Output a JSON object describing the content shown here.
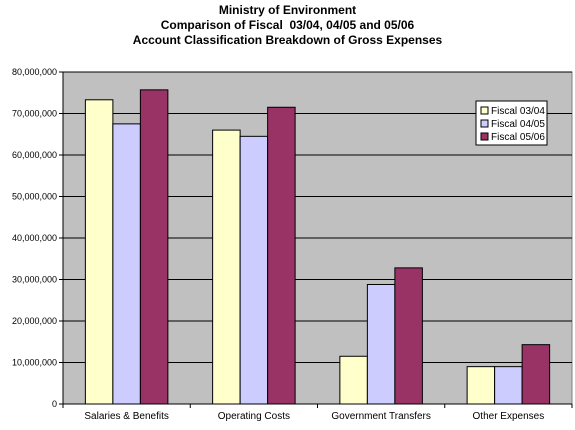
{
  "title_lines": [
    "Ministry of Environment",
    "Comparison of Fiscal  03/04, 04/05 and 05/06",
    "Account Classification Breakdown of Gross Expenses"
  ],
  "chart_data": {
    "type": "bar",
    "title": "Ministry of Environment / Comparison of Fiscal  03/04, 04/05 and 05/06 / Account Classification Breakdown of Gross Expenses",
    "categories": [
      "Salaries & Benefits",
      "Operating Costs",
      "Government Transfers",
      "Other Expenses"
    ],
    "series": [
      {
        "name": "Fiscal 03/04",
        "color": "#FFFFCC",
        "values": [
          73300000,
          66000000,
          11500000,
          9000000
        ]
      },
      {
        "name": "Fiscal 04/05",
        "color": "#CCCCFF",
        "values": [
          67500000,
          64500000,
          28800000,
          9000000
        ]
      },
      {
        "name": "Fiscal 05/06",
        "color": "#993366",
        "values": [
          75700000,
          71500000,
          32800000,
          14300000
        ]
      }
    ],
    "ylim": [
      0,
      80000000
    ],
    "yticks": [
      0,
      10000000,
      20000000,
      30000000,
      40000000,
      50000000,
      60000000,
      70000000,
      80000000
    ],
    "ytick_labels": [
      "0",
      "10,000,000",
      "20,000,000",
      "30,000,000",
      "40,000,000",
      "50,000,000",
      "60,000,000",
      "70,000,000",
      "80,000,000"
    ],
    "xlabel": "",
    "ylabel": "",
    "grid": true,
    "legend_position": "right",
    "plot_background": "#C0C0C0"
  }
}
